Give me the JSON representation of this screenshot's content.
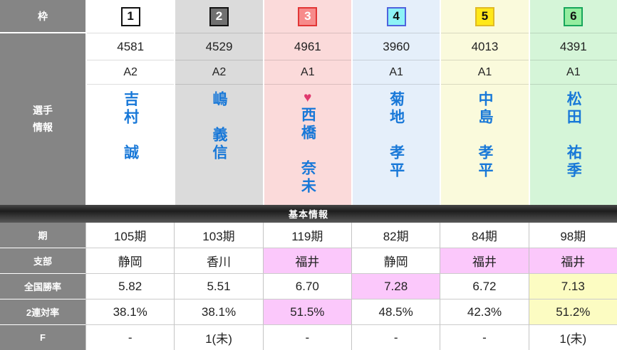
{
  "colors": {
    "header_gray": "#858585",
    "name_blue": "#1878d8",
    "heart_pink": "#e0396e",
    "highlight_pink": "#fbc8fb",
    "highlight_yellow": "#fcfcc2",
    "column_bg": [
      "#ffffff",
      "#dbdbdb",
      "#fbdada",
      "#e5effa",
      "#fafadc",
      "#d5f5d8"
    ],
    "badge_bg": [
      "#ffffff",
      "#707070",
      "#f78b8b",
      "#8df3f6",
      "#ffe819",
      "#95eda0"
    ],
    "badge_border": [
      "#111111",
      "#111111",
      "#e23636",
      "#4f63dd",
      "#e0ba25",
      "#17a65b"
    ]
  },
  "labels": {
    "frame_header": "枠",
    "player_info_line1": "選手",
    "player_info_line2": "情報"
  },
  "players": [
    {
      "frame": "1",
      "reg_no": "4581",
      "class": "A2",
      "name": "吉村　誠"
    },
    {
      "frame": "2",
      "reg_no": "4529",
      "class": "A2",
      "name": "嶋　義信"
    },
    {
      "frame": "3",
      "reg_no": "4961",
      "class": "A1",
      "name": "西橋　奈未",
      "heart": "♥"
    },
    {
      "frame": "4",
      "reg_no": "3960",
      "class": "A1",
      "name": "菊地　孝平"
    },
    {
      "frame": "5",
      "reg_no": "4013",
      "class": "A1",
      "name": "中島　孝平"
    },
    {
      "frame": "6",
      "reg_no": "4391",
      "class": "A1",
      "name": "松田　祐季"
    }
  ],
  "basic_info": {
    "title": "基本情報",
    "rows": [
      {
        "label": "期",
        "values": [
          "105期",
          "103期",
          "119期",
          "82期",
          "84期",
          "98期"
        ]
      },
      {
        "label": "支部",
        "values": [
          "静岡",
          "香川",
          "福井",
          "静岡",
          "福井",
          "福井"
        ]
      },
      {
        "label": "全国勝率",
        "values": [
          "5.82",
          "5.51",
          "6.70",
          "7.28",
          "6.72",
          "7.13"
        ]
      },
      {
        "label": "2連対率",
        "values": [
          "38.1%",
          "38.1%",
          "51.5%",
          "48.5%",
          "42.3%",
          "51.2%"
        ]
      },
      {
        "label": "F",
        "values": [
          "-",
          "1(未)",
          "-",
          "-",
          "-",
          "1(未)"
        ]
      }
    ]
  }
}
